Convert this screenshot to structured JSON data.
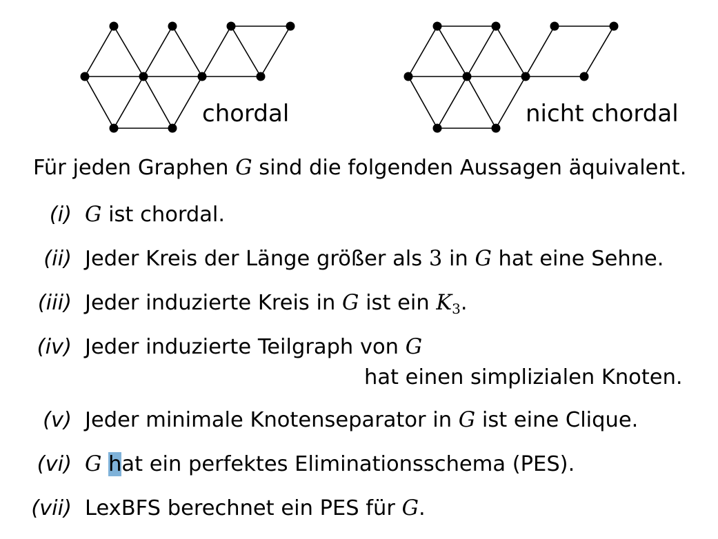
{
  "graphs": {
    "left_label": "chordal",
    "right_label": "nicht chordal"
  },
  "intro": {
    "before": "Für jeden Graphen ",
    "var": "G",
    "after": " sind die folgenden Aussagen äquivalent."
  },
  "items": [
    {
      "num": "(i)",
      "a": "",
      "v1": "G",
      "b": " ist chordal."
    },
    {
      "num": "(ii)",
      "a": "Jeder Kreis der Länge größer als ",
      "n": "3",
      "c": " in ",
      "v1": "G",
      "b": " hat eine Sehne."
    },
    {
      "num": "(iii)",
      "a": "Jeder induzierte Kreis in ",
      "v1": "G",
      "c": " ist ein ",
      "k": "K",
      "sub": "3",
      "b": "."
    },
    {
      "num": "(iv)",
      "a": "Jeder induzierte Teilgraph von ",
      "v1": "G",
      "cont": "hat einen simplizialen Knoten."
    },
    {
      "num": "(v)",
      "a": "Jeder minimale Knotenseparator in ",
      "v1": "G",
      "b": " ist eine Clique."
    },
    {
      "num": "(vi)",
      "v1": "G",
      "cur": "h",
      "b": "at ein perfektes Eliminationsschema (PES)."
    },
    {
      "num": "(vii)",
      "a": "LexBFS berechnet ein PES für ",
      "v1": "G",
      "b": "."
    }
  ]
}
